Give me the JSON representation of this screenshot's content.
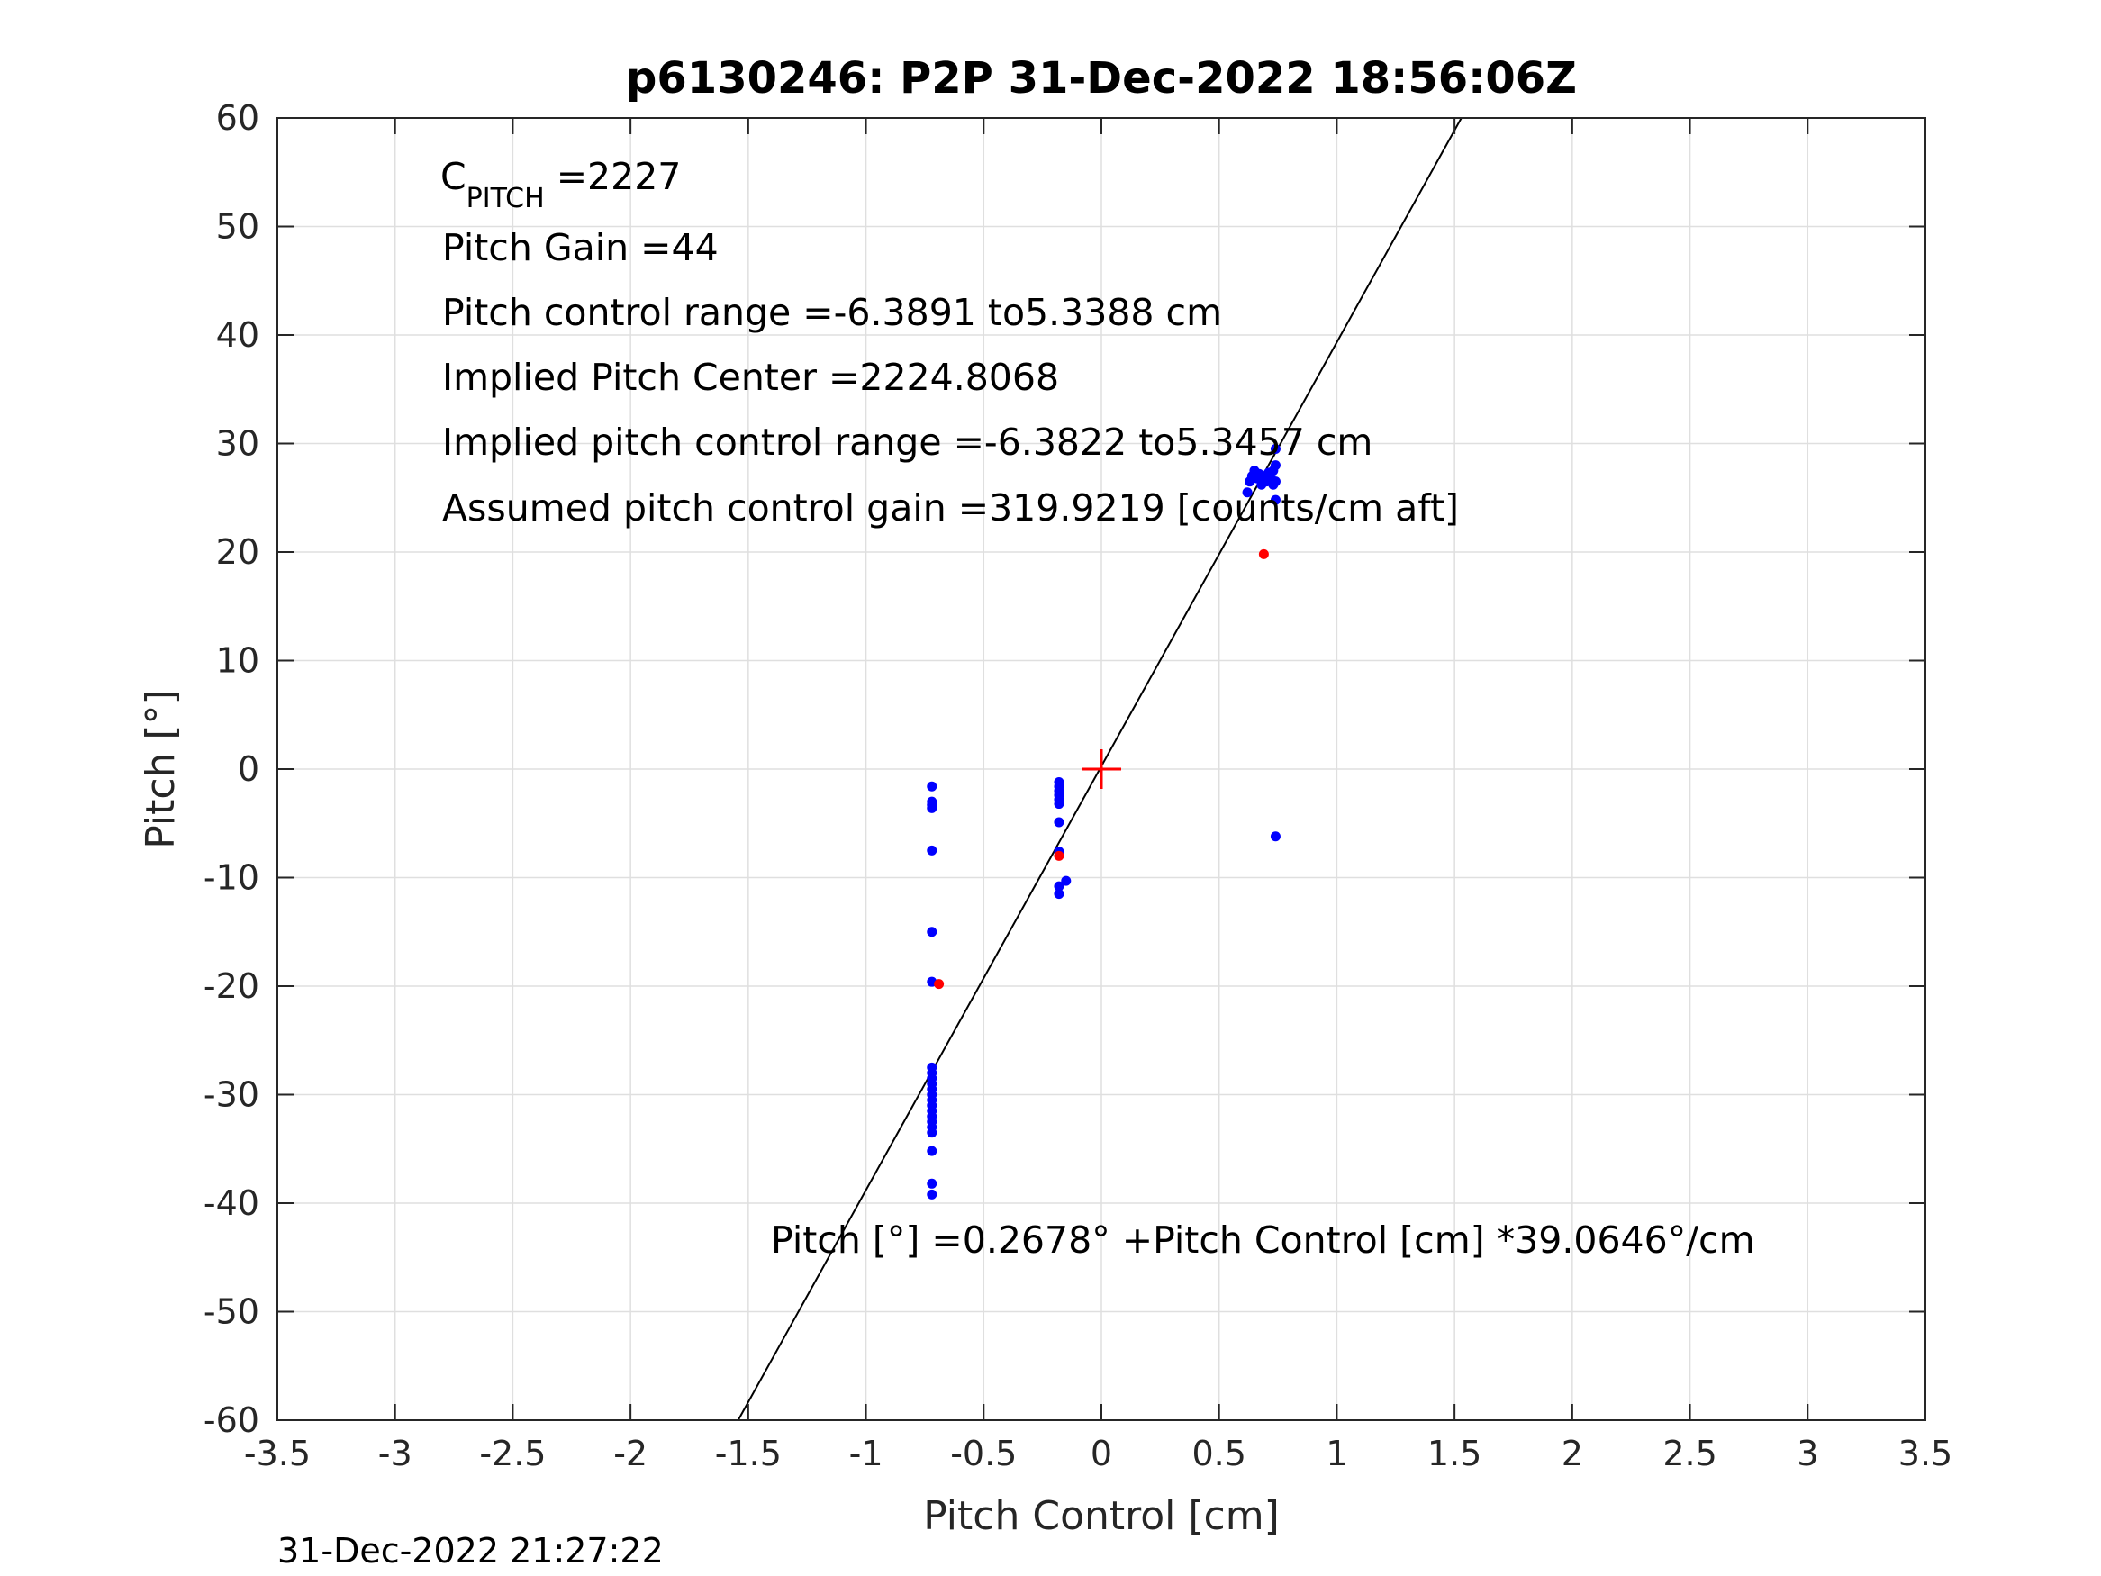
{
  "chart_data": {
    "type": "scatter",
    "title": "p6130246: P2P 31-Dec-2022 18:56:06Z",
    "xlabel": "Pitch Control [cm]",
    "ylabel": "Pitch [°]",
    "xlim": [
      -3.5,
      3.5
    ],
    "ylim": [
      -60,
      60
    ],
    "x_ticks": [
      -3.5,
      -3,
      -2.5,
      -2,
      -1.5,
      -1,
      -0.5,
      0,
      0.5,
      1,
      1.5,
      2,
      2.5,
      3,
      3.5
    ],
    "y_ticks": [
      -60,
      -50,
      -40,
      -30,
      -20,
      -10,
      0,
      10,
      20,
      30,
      40,
      50,
      60
    ],
    "grid": true,
    "annotations": {
      "c_pitch_main": "C",
      "c_pitch_sub": "PITCH",
      "c_pitch_value": " =2227",
      "pitch_gain": "Pitch Gain =44",
      "pitch_control_range": "Pitch control range =-6.3891 to5.3388 cm",
      "implied_pitch_center": "Implied Pitch Center =2224.8068",
      "implied_pitch_control_range": "Implied pitch control range =-6.3822 to5.3457 cm",
      "assumed_gain": "Assumed pitch control gain =319.9219 [counts/cm aft]",
      "fit_equation": "Pitch [°] =0.2678° +Pitch Control [cm] *39.0646°/cm"
    },
    "fit_line": {
      "intercept": 0.2678,
      "slope": 39.0646,
      "color": "#000000"
    },
    "center_marker": {
      "x": 0,
      "y": 0,
      "color": "#ff0000"
    },
    "series": [
      {
        "color": "#0000ff",
        "points": [
          [
            -0.72,
            -1.6
          ],
          [
            -0.72,
            -3.0
          ],
          [
            -0.72,
            -3.3
          ],
          [
            -0.72,
            -3.6
          ],
          [
            -0.72,
            -7.5
          ],
          [
            -0.72,
            -15.0
          ],
          [
            -0.72,
            -19.6
          ],
          [
            -0.72,
            -27.5
          ],
          [
            -0.72,
            -28.0
          ],
          [
            -0.72,
            -28.5
          ],
          [
            -0.72,
            -29.0
          ],
          [
            -0.72,
            -29.5
          ],
          [
            -0.72,
            -30.0
          ],
          [
            -0.72,
            -30.5
          ],
          [
            -0.72,
            -31.0
          ],
          [
            -0.72,
            -31.5
          ],
          [
            -0.72,
            -32.0
          ],
          [
            -0.72,
            -32.5
          ],
          [
            -0.72,
            -33.0
          ],
          [
            -0.72,
            -33.5
          ],
          [
            -0.72,
            -35.2
          ],
          [
            -0.72,
            -38.2
          ],
          [
            -0.72,
            -39.2
          ],
          [
            -0.18,
            -1.2
          ],
          [
            -0.18,
            -1.6
          ],
          [
            -0.18,
            -2.0
          ],
          [
            -0.18,
            -2.4
          ],
          [
            -0.18,
            -2.8
          ],
          [
            -0.18,
            -3.2
          ],
          [
            -0.18,
            -4.9
          ],
          [
            -0.18,
            -7.6
          ],
          [
            -0.18,
            -10.8
          ],
          [
            -0.18,
            -11.5
          ],
          [
            -0.15,
            -10.3
          ],
          [
            0.62,
            25.5
          ],
          [
            0.63,
            26.5
          ],
          [
            0.64,
            27.0
          ],
          [
            0.65,
            27.5
          ],
          [
            0.66,
            26.8
          ],
          [
            0.67,
            27.2
          ],
          [
            0.68,
            26.2
          ],
          [
            0.69,
            27.0
          ],
          [
            0.7,
            26.5
          ],
          [
            0.71,
            27.3
          ],
          [
            0.72,
            26.8
          ],
          [
            0.73,
            26.2
          ],
          [
            0.73,
            27.5
          ],
          [
            0.74,
            28.0
          ],
          [
            0.74,
            26.5
          ],
          [
            0.74,
            29.5
          ],
          [
            0.74,
            24.8
          ],
          [
            0.74,
            -6.2
          ]
        ]
      },
      {
        "color": "#ff0000",
        "points": [
          [
            0.69,
            19.8
          ],
          [
            -0.69,
            -19.8
          ],
          [
            -0.18,
            -8.0
          ]
        ]
      }
    ]
  },
  "footer": {
    "timestamp": "31-Dec-2022 21:27:22"
  }
}
